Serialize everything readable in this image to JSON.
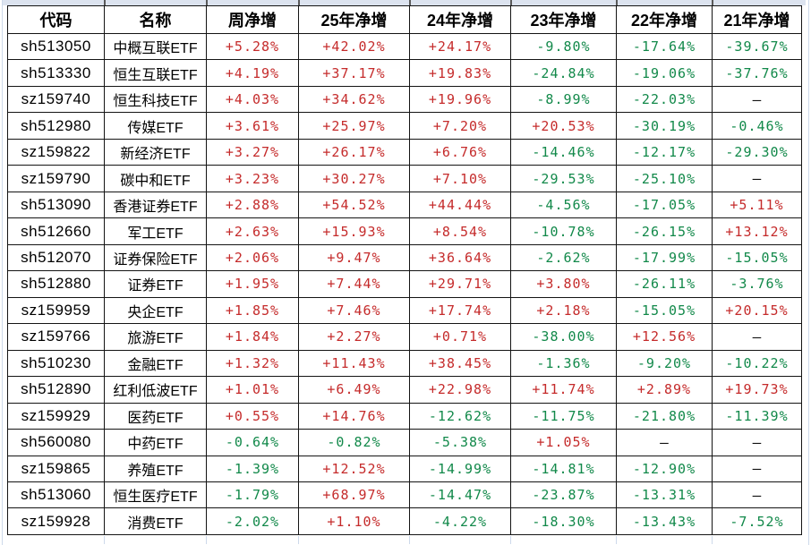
{
  "colors": {
    "positive": "#c52b2b",
    "negative": "#12894a",
    "neutral_dash": "#111111",
    "header_text": "#000000",
    "table_border": "#141414",
    "top_strip": "#dce3ef",
    "edge_gridline": "#cdd9ea"
  },
  "chart_data": {
    "type": "table",
    "columns": [
      "代码",
      "名称",
      "周净增",
      "25年净增",
      "24年净增",
      "23年净增",
      "22年净增",
      "21年净增"
    ],
    "rows": [
      [
        "sh513050",
        "中概互联ETF",
        "+5.28%",
        "+42.02%",
        "+24.17%",
        "-9.80%",
        "-17.64%",
        "-39.67%"
      ],
      [
        "sh513330",
        "恒生互联ETF",
        "+4.19%",
        "+37.17%",
        "+19.83%",
        "-24.84%",
        "-19.06%",
        "-37.76%"
      ],
      [
        "sz159740",
        "恒生科技ETF",
        "+4.03%",
        "+34.62%",
        "+19.96%",
        "-8.99%",
        "-22.03%",
        "—"
      ],
      [
        "sh512980",
        "传媒ETF",
        "+3.61%",
        "+25.97%",
        "+7.20%",
        "+20.53%",
        "-30.19%",
        "-0.46%"
      ],
      [
        "sz159822",
        "新经济ETF",
        "+3.27%",
        "+26.17%",
        "+6.76%",
        "-14.46%",
        "-12.17%",
        "-29.30%"
      ],
      [
        "sz159790",
        "碳中和ETF",
        "+3.23%",
        "+30.27%",
        "+7.10%",
        "-29.53%",
        "-25.10%",
        "—"
      ],
      [
        "sh513090",
        "香港证券ETF",
        "+2.88%",
        "+54.52%",
        "+44.44%",
        "-4.56%",
        "-17.05%",
        "+5.11%"
      ],
      [
        "sh512660",
        "军工ETF",
        "+2.63%",
        "+15.93%",
        "+8.54%",
        "-10.78%",
        "-26.15%",
        "+13.12%"
      ],
      [
        "sh512070",
        "证券保险ETF",
        "+2.06%",
        "+9.47%",
        "+36.64%",
        "-2.62%",
        "-17.99%",
        "-15.05%"
      ],
      [
        "sh512880",
        "证券ETF",
        "+1.95%",
        "+7.44%",
        "+29.71%",
        "+3.80%",
        "-26.11%",
        "-3.76%"
      ],
      [
        "sz159959",
        "央企ETF",
        "+1.85%",
        "+7.46%",
        "+17.74%",
        "+2.18%",
        "-15.05%",
        "+20.15%"
      ],
      [
        "sz159766",
        "旅游ETF",
        "+1.84%",
        "+2.27%",
        "+0.71%",
        "-38.00%",
        "+12.56%",
        "—"
      ],
      [
        "sh510230",
        "金融ETF",
        "+1.32%",
        "+11.43%",
        "+38.45%",
        "-1.36%",
        "-9.20%",
        "-10.22%"
      ],
      [
        "sh512890",
        "红利低波ETF",
        "+1.01%",
        "+6.49%",
        "+22.98%",
        "+11.74%",
        "+2.89%",
        "+19.73%"
      ],
      [
        "sz159929",
        "医药ETF",
        "+0.55%",
        "+14.76%",
        "-12.62%",
        "-11.75%",
        "-21.80%",
        "-11.39%"
      ],
      [
        "sh560080",
        "中药ETF",
        "-0.64%",
        "-0.82%",
        "-5.38%",
        "+1.05%",
        "—",
        "—"
      ],
      [
        "sz159865",
        "养殖ETF",
        "-1.39%",
        "+12.52%",
        "-14.99%",
        "-14.81%",
        "-12.90%",
        "—"
      ],
      [
        "sh513060",
        "恒生医疗ETF",
        "-1.79%",
        "+68.97%",
        "-14.47%",
        "-23.87%",
        "-13.31%",
        "—"
      ],
      [
        "sz159928",
        "消费ETF",
        "-2.02%",
        "+1.10%",
        "-4.22%",
        "-18.30%",
        "-13.43%",
        "-7.52%"
      ]
    ]
  }
}
